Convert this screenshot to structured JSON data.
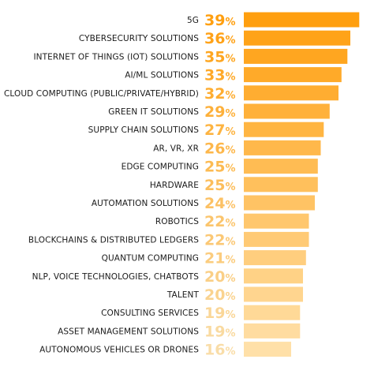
{
  "chart_data": {
    "type": "bar",
    "orientation": "horizontal",
    "categories": [
      "5G",
      "CYBERSECURITY SOLUTIONS",
      "INTERNET OF THINGS (IOT) SOLUTIONS",
      "AI/ML SOLUTIONS",
      "CLOUD COMPUTING (PUBLIC/PRIVATE/HYBRID)",
      "GREEN IT SOLUTIONS",
      "SUPPLY CHAIN SOLUTIONS",
      "AR, VR, XR",
      "EDGE COMPUTING",
      "HARDWARE",
      "AUTOMATION SOLUTIONS",
      "ROBOTICS",
      "BLOCKCHAINS & DISTRIBUTED LEDGERS",
      "QUANTUM COMPUTING",
      "NLP, VOICE TECHNOLOGIES, CHATBOTS",
      "TALENT",
      "CONSULTING SERVICES",
      "ASSET MANAGEMENT SOLUTIONS",
      "AUTONOMOUS VEHICLES OR DRONES"
    ],
    "values": [
      39,
      36,
      35,
      33,
      32,
      29,
      27,
      26,
      25,
      25,
      24,
      22,
      22,
      21,
      20,
      20,
      19,
      19,
      16
    ],
    "value_labels": [
      "39",
      "36",
      "35",
      "33",
      "32",
      "29",
      "27",
      "26",
      "25",
      "25",
      "24",
      "22",
      "22",
      "21",
      "20",
      "20",
      "19",
      "19",
      "16"
    ],
    "value_suffix": "%",
    "title": "",
    "xlabel": "",
    "ylabel": "",
    "xlim": [
      0,
      40
    ],
    "grid": false,
    "legend": "none",
    "colors": {
      "bar_start": "#FF9F0F",
      "bar_end": "#FFE0A8",
      "value_start": "#FF9F0F",
      "value_end": "#F9DDA8",
      "label": "#1a1a1a"
    }
  }
}
